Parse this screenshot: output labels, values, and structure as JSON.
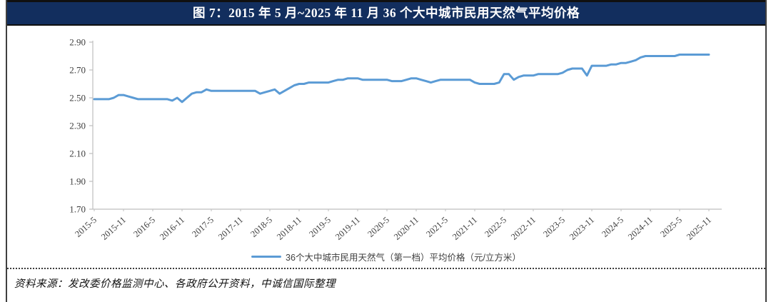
{
  "figure": {
    "title": "图 7：2015 年 5 月~2025 年 11 月 36 个大中城市民用天然气平均价格",
    "source_note": "资料来源：发改委价格监测中心、各政府公开资料，中诚信国际整理"
  },
  "colors": {
    "title_bar_bg": "#122E5E",
    "title_text": "#FFFFFF",
    "series_line": "#5B9BD5",
    "axis_line": "#BFBFBF",
    "tick_text": "#3F3F3F"
  },
  "chart_data": {
    "type": "line",
    "title": "图 7：2015 年 5 月~2025 年 11 月 36 个大中城市民用天然气平均价格",
    "xlabel": "",
    "ylabel": "",
    "x_frequency": "monthly",
    "x_start": "2015-5",
    "x_end": "2025-11",
    "x_tick_labels": [
      "2015-5",
      "2015-11",
      "2016-5",
      "2016-11",
      "2017-5",
      "2017-11",
      "2018-5",
      "2018-11",
      "2019-5",
      "2019-11",
      "2020-5",
      "2020-11",
      "2021-5",
      "2021-11",
      "2022-5",
      "2022-11",
      "2023-5",
      "2023-11",
      "2024-5",
      "2024-11",
      "2025-5",
      "2025-11"
    ],
    "y_ticks": [
      1.7,
      1.9,
      2.1,
      2.3,
      2.5,
      2.7,
      2.9
    ],
    "ylim": [
      1.7,
      2.9
    ],
    "grid": false,
    "legend_position": "bottom",
    "series": [
      {
        "name": "36个大中城市民用天然气（第一档）平均价格（元/立方米）",
        "color": "#5B9BD5",
        "values": [
          2.49,
          2.49,
          2.49,
          2.49,
          2.5,
          2.52,
          2.52,
          2.51,
          2.5,
          2.49,
          2.49,
          2.49,
          2.49,
          2.49,
          2.49,
          2.49,
          2.48,
          2.5,
          2.47,
          2.5,
          2.53,
          2.54,
          2.54,
          2.56,
          2.55,
          2.55,
          2.55,
          2.55,
          2.55,
          2.55,
          2.55,
          2.55,
          2.55,
          2.55,
          2.53,
          2.54,
          2.55,
          2.56,
          2.53,
          2.55,
          2.57,
          2.59,
          2.6,
          2.6,
          2.61,
          2.61,
          2.61,
          2.61,
          2.61,
          2.62,
          2.63,
          2.63,
          2.64,
          2.64,
          2.64,
          2.63,
          2.63,
          2.63,
          2.63,
          2.63,
          2.63,
          2.62,
          2.62,
          2.62,
          2.63,
          2.64,
          2.64,
          2.63,
          2.62,
          2.61,
          2.62,
          2.63,
          2.63,
          2.63,
          2.63,
          2.63,
          2.63,
          2.63,
          2.61,
          2.6,
          2.6,
          2.6,
          2.6,
          2.61,
          2.67,
          2.67,
          2.63,
          2.65,
          2.66,
          2.66,
          2.66,
          2.67,
          2.67,
          2.67,
          2.67,
          2.67,
          2.68,
          2.7,
          2.71,
          2.71,
          2.71,
          2.66,
          2.73,
          2.73,
          2.73,
          2.73,
          2.74,
          2.74,
          2.75,
          2.75,
          2.76,
          2.77,
          2.79,
          2.8,
          2.8,
          2.8,
          2.8,
          2.8,
          2.8,
          2.8,
          2.81,
          2.81,
          2.81,
          2.81,
          2.81,
          2.81,
          2.81
        ]
      }
    ]
  }
}
